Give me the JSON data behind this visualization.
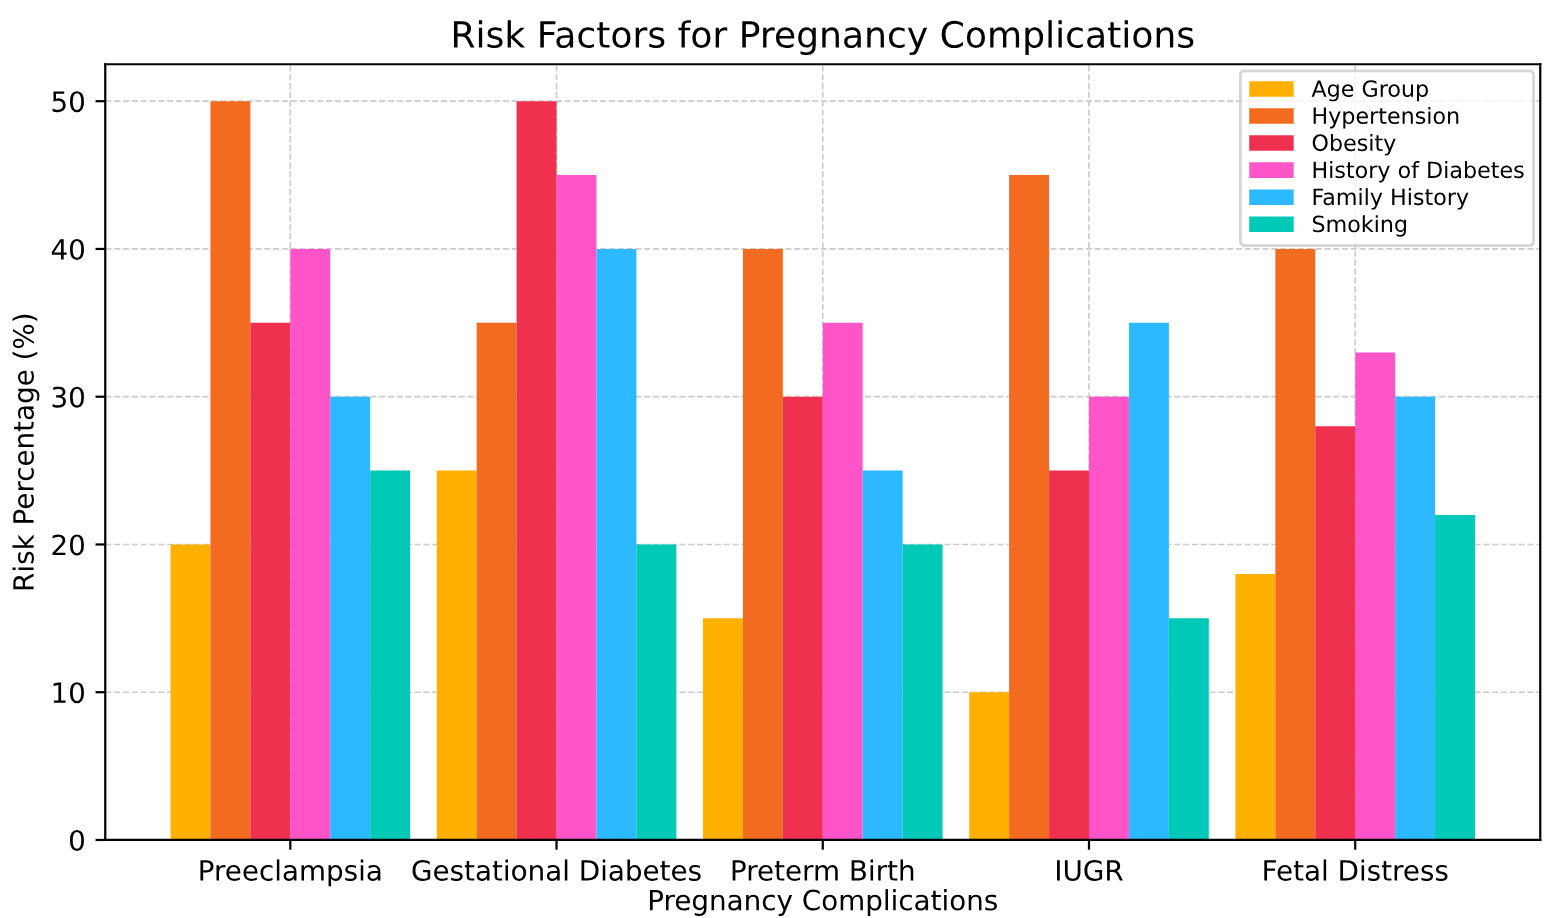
{
  "chart_data": {
    "type": "bar",
    "title": "Risk Factors for Pregnancy Complications",
    "xlabel": "Pregnancy Complications",
    "ylabel": "Risk Percentage (%)",
    "categories": [
      "Preeclampsia",
      "Gestational Diabetes",
      "Preterm Birth",
      "IUGR",
      "Fetal Distress"
    ],
    "series": [
      {
        "name": "Age Group",
        "color": "#ffb000",
        "values": [
          20,
          25,
          15,
          10,
          18
        ]
      },
      {
        "name": "Hypertension",
        "color": "#f26b21",
        "values": [
          50,
          35,
          40,
          45,
          40
        ]
      },
      {
        "name": "Obesity",
        "color": "#f0304f",
        "values": [
          35,
          50,
          30,
          25,
          28
        ]
      },
      {
        "name": "History of Diabetes",
        "color": "#ff55c8",
        "values": [
          40,
          45,
          35,
          30,
          33
        ]
      },
      {
        "name": "Family History",
        "color": "#2cb9ff",
        "values": [
          30,
          40,
          25,
          35,
          30
        ]
      },
      {
        "name": "Smoking",
        "color": "#00c9b7",
        "values": [
          25,
          20,
          20,
          15,
          22
        ]
      }
    ],
    "ylim": [
      0,
      52.5
    ],
    "yticks": [
      0,
      10,
      20,
      30,
      40,
      50
    ],
    "grid": true,
    "legend": "top right"
  }
}
